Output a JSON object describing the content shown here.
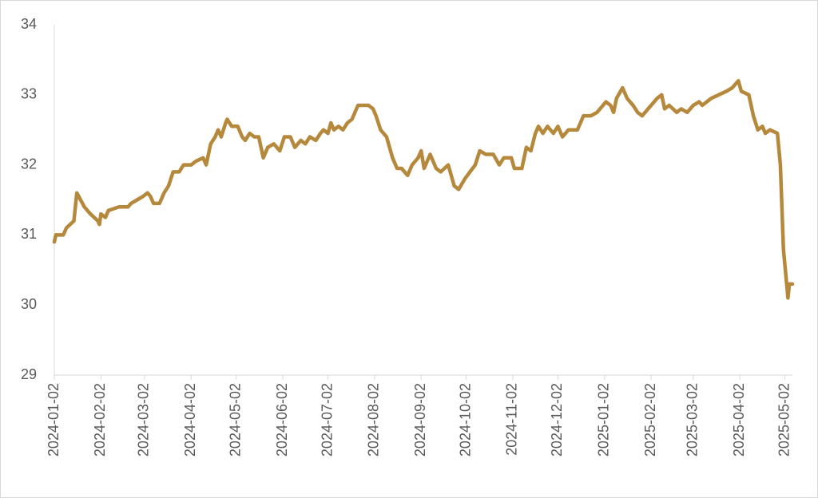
{
  "chart_data": {
    "type": "line",
    "x": [
      "2024-01-02",
      "2024-01-03",
      "2024-01-08",
      "2024-01-10",
      "2024-01-15",
      "2024-01-17",
      "2024-01-22",
      "2024-01-26",
      "2024-01-31",
      "2024-02-01",
      "2024-02-02",
      "2024-02-05",
      "2024-02-07",
      "2024-02-14",
      "2024-02-20",
      "2024-02-22",
      "2024-02-26",
      "2024-03-01",
      "2024-03-04",
      "2024-03-06",
      "2024-03-08",
      "2024-03-12",
      "2024-03-15",
      "2024-03-18",
      "2024-03-21",
      "2024-03-25",
      "2024-03-28",
      "2024-04-02",
      "2024-04-05",
      "2024-04-10",
      "2024-04-12",
      "2024-04-15",
      "2024-04-18",
      "2024-04-20",
      "2024-04-22",
      "2024-04-25",
      "2024-04-26",
      "2024-04-29",
      "2024-05-03",
      "2024-05-06",
      "2024-05-08",
      "2024-05-11",
      "2024-05-14",
      "2024-05-17",
      "2024-05-20",
      "2024-05-23",
      "2024-05-27",
      "2024-05-31",
      "2024-06-03",
      "2024-06-07",
      "2024-06-10",
      "2024-06-14",
      "2024-06-17",
      "2024-06-20",
      "2024-06-24",
      "2024-06-27",
      "2024-06-29",
      "2024-07-02",
      "2024-07-04",
      "2024-07-06",
      "2024-07-09",
      "2024-07-12",
      "2024-07-15",
      "2024-07-18",
      "2024-07-22",
      "2024-07-26",
      "2024-07-29",
      "2024-08-01",
      "2024-08-03",
      "2024-08-06",
      "2024-08-10",
      "2024-08-14",
      "2024-08-17",
      "2024-08-20",
      "2024-08-24",
      "2024-08-27",
      "2024-08-31",
      "2024-09-02",
      "2024-09-04",
      "2024-09-08",
      "2024-09-12",
      "2024-09-15",
      "2024-09-20",
      "2024-09-24",
      "2024-09-27",
      "2024-10-01",
      "2024-10-08",
      "2024-10-11",
      "2024-10-15",
      "2024-10-20",
      "2024-10-24",
      "2024-10-27",
      "2024-11-01",
      "2024-11-03",
      "2024-11-08",
      "2024-11-11",
      "2024-11-14",
      "2024-11-17",
      "2024-11-19",
      "2024-11-22",
      "2024-11-25",
      "2024-11-29",
      "2024-12-02",
      "2024-12-05",
      "2024-12-09",
      "2024-12-15",
      "2024-12-19",
      "2024-12-24",
      "2024-12-28",
      "2025-01-03",
      "2025-01-06",
      "2025-01-08",
      "2025-01-10",
      "2025-01-14",
      "2025-01-17",
      "2025-01-21",
      "2025-01-24",
      "2025-01-27",
      "2025-02-02",
      "2025-02-06",
      "2025-02-09",
      "2025-02-11",
      "2025-02-14",
      "2025-02-19",
      "2025-02-22",
      "2025-02-26",
      "2025-03-02",
      "2025-03-06",
      "2025-03-08",
      "2025-03-14",
      "2025-03-19",
      "2025-03-24",
      "2025-03-28",
      "2025-04-01",
      "2025-04-03",
      "2025-04-08",
      "2025-04-11",
      "2025-04-14",
      "2025-04-17",
      "2025-04-19",
      "2025-04-22",
      "2025-04-27",
      "2025-04-29",
      "2025-05-01",
      "2025-05-04",
      "2025-05-05",
      "2025-05-07"
    ],
    "series": [
      {
        "color": "#b5883c",
        "values": [
          30.9,
          31.0,
          31.0,
          31.1,
          31.2,
          31.6,
          31.4,
          31.3,
          31.2,
          31.15,
          31.3,
          31.25,
          31.35,
          31.4,
          31.4,
          31.45,
          31.5,
          31.55,
          31.6,
          31.55,
          31.45,
          31.45,
          31.6,
          31.7,
          31.9,
          31.9,
          32.0,
          32.0,
          32.05,
          32.1,
          32.0,
          32.3,
          32.4,
          32.5,
          32.4,
          32.6,
          32.65,
          32.55,
          32.55,
          32.4,
          32.35,
          32.45,
          32.4,
          32.4,
          32.1,
          32.25,
          32.3,
          32.2,
          32.4,
          32.4,
          32.25,
          32.35,
          32.3,
          32.4,
          32.35,
          32.45,
          32.5,
          32.45,
          32.6,
          32.5,
          32.55,
          32.5,
          32.6,
          32.65,
          32.85,
          32.85,
          32.85,
          32.8,
          32.7,
          32.5,
          32.4,
          32.1,
          31.95,
          31.95,
          31.85,
          32.0,
          32.1,
          32.2,
          31.95,
          32.15,
          31.95,
          31.9,
          32.0,
          31.7,
          31.65,
          31.8,
          32.0,
          32.2,
          32.15,
          32.15,
          32.0,
          32.1,
          32.1,
          31.95,
          31.95,
          32.25,
          32.2,
          32.45,
          32.55,
          32.45,
          32.55,
          32.45,
          32.55,
          32.4,
          32.5,
          32.5,
          32.7,
          32.7,
          32.75,
          32.9,
          32.85,
          32.75,
          32.95,
          33.1,
          32.95,
          32.85,
          32.75,
          32.7,
          32.85,
          32.95,
          33.0,
          32.8,
          32.85,
          32.75,
          32.8,
          32.75,
          32.85,
          32.9,
          32.85,
          32.95,
          33.0,
          33.05,
          33.1,
          33.2,
          33.05,
          33.0,
          32.7,
          32.5,
          32.55,
          32.45,
          32.5,
          32.45,
          32.0,
          30.8,
          30.1,
          30.3,
          30.3
        ]
      }
    ],
    "xlim": [
      "2024-01-02",
      "2025-05-07"
    ],
    "xticks": [
      "2024-01-02",
      "2024-02-02",
      "2024-03-02",
      "2024-04-02",
      "2024-05-02",
      "2024-06-02",
      "2024-07-02",
      "2024-08-02",
      "2024-09-02",
      "2024-10-02",
      "2024-11-02",
      "2024-12-02",
      "2025-01-02",
      "2025-02-02",
      "2025-03-02",
      "2025-04-02",
      "2025-05-02"
    ],
    "ylim": [
      29,
      34
    ],
    "yticks": [
      29,
      30,
      31,
      32,
      33,
      34
    ],
    "grid": false
  }
}
